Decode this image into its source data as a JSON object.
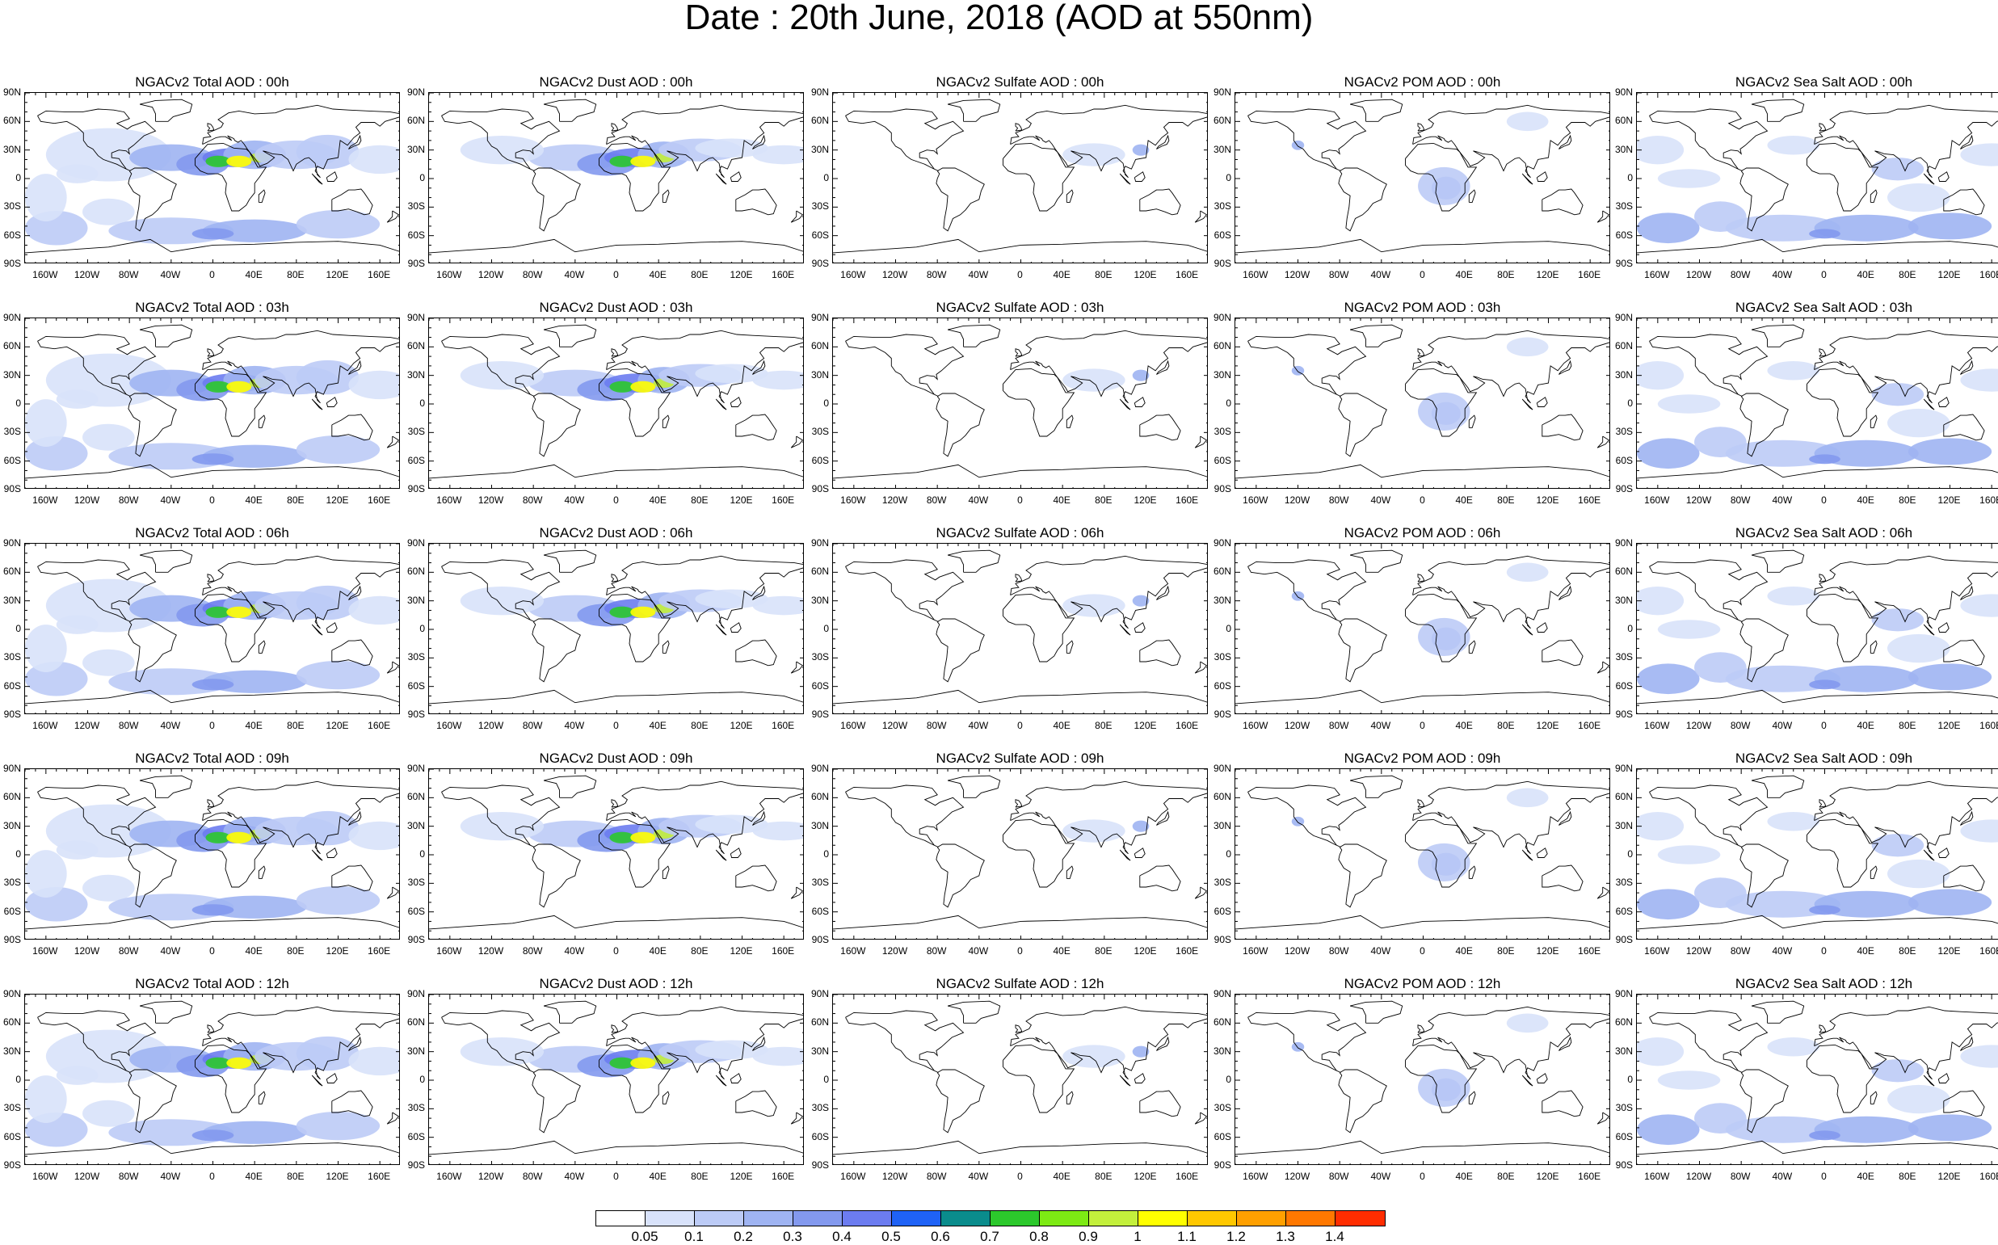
{
  "title": "Date : 20th June, 2018 (AOD at 550nm)",
  "panel_titles": [
    [
      "NGACv2 Total AOD : 00h",
      "NGACv2 Dust AOD : 00h",
      "NGACv2 Sulfate AOD : 00h",
      "NGACv2 POM AOD : 00h",
      "NGACv2 Sea Salt AOD : 00h"
    ],
    [
      "NGACv2 Total AOD : 03h",
      "NGACv2 Dust AOD : 03h",
      "NGACv2 Sulfate AOD : 03h",
      "NGACv2 POM AOD : 03h",
      "NGACv2 Sea Salt AOD : 03h"
    ],
    [
      "NGACv2 Total AOD : 06h",
      "NGACv2 Dust AOD : 06h",
      "NGACv2 Sulfate AOD : 06h",
      "NGACv2 POM AOD : 06h",
      "NGACv2 Sea Salt AOD : 06h"
    ],
    [
      "NGACv2 Total AOD : 09h",
      "NGACv2 Dust AOD : 09h",
      "NGACv2 Sulfate AOD : 09h",
      "NGACv2 POM AOD : 09h",
      "NGACv2 Sea Salt  AOD : 09h"
    ],
    [
      "NGACv2 Total AOD  : 12h",
      "NGACv2 Dust AOD : 12h",
      "NGACv2 Sulfate AOD : 12h",
      "NGACv2 POM  AOD : 12h",
      "NGACv2 Sea Salt  AOD : 12h"
    ]
  ],
  "lat_labels": [
    "90N",
    "60N",
    "30N",
    "0",
    "30S",
    "60S",
    "90S"
  ],
  "lon_labels": [
    "160W",
    "120W",
    "80W",
    "40W",
    "0",
    "40E",
    "80E",
    "120E",
    "160E"
  ],
  "colorbar": {
    "colors": [
      "#ffffff",
      "#d8e2fa",
      "#bccbf6",
      "#9fb4f2",
      "#8399ee",
      "#6c7cf0",
      "#1f62f6",
      "#0a8c8c",
      "#2cc82c",
      "#7dea14",
      "#c3f03c",
      "#ffff00",
      "#ffc800",
      "#ffa000",
      "#ff7800",
      "#ff2d00"
    ],
    "labels": [
      "0.05",
      "0.1",
      "0.2",
      "0.3",
      "0.4",
      "0.5",
      "0.6",
      "0.7",
      "0.8",
      "0.9",
      "1",
      "1.1",
      "1.2",
      "1.3",
      "1.4"
    ]
  },
  "field_types": [
    "total",
    "dust",
    "sulfate",
    "pom",
    "seasalt"
  ]
}
